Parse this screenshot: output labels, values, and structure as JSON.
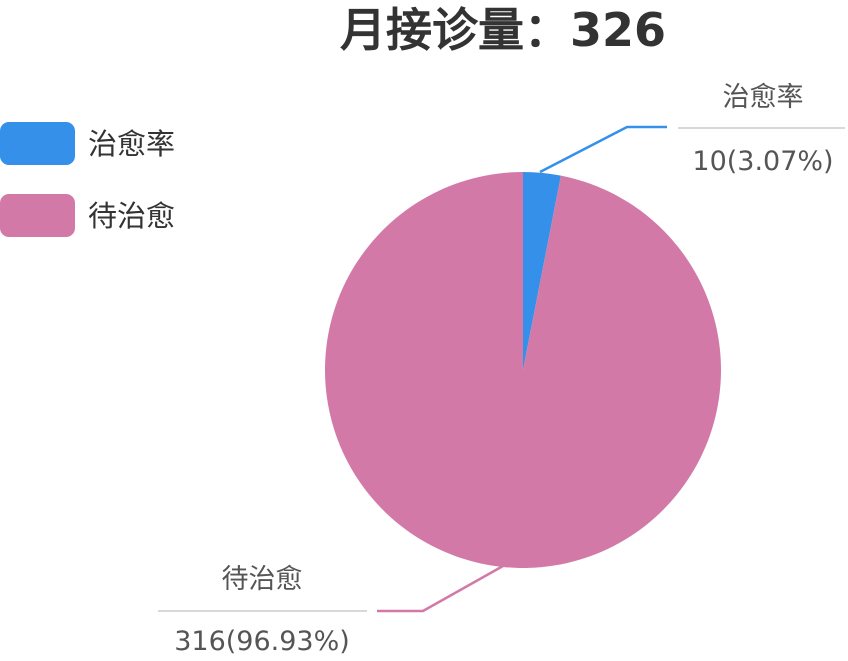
{
  "chart_data": {
    "type": "pie",
    "title": "月接诊量：326",
    "legend_position": "top-left",
    "slices": [
      {
        "name": "治愈率",
        "value": 10,
        "value_label": "10(3.07%)",
        "color": "#3590ea"
      },
      {
        "name": "待治愈",
        "value": 316,
        "value_label": "316(96.93%)",
        "color": "#d379a7"
      }
    ]
  }
}
